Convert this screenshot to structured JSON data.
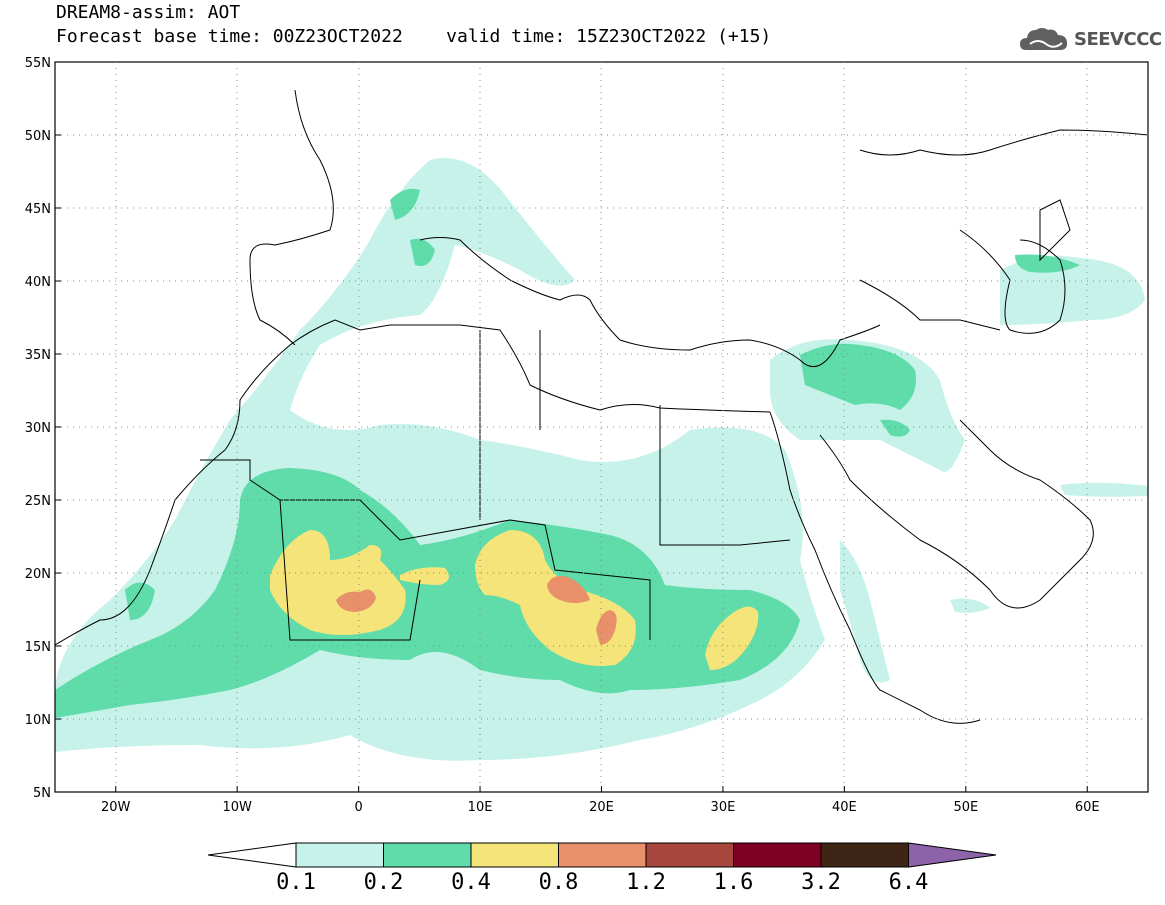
{
  "header": {
    "title": "DREAM8-assim: AOT",
    "base_time_label": "Forecast base time: 00Z23OCT2022",
    "valid_time_label": "valid time: 15Z23OCT2022 (+15)",
    "logo_text": "SEEVCCC"
  },
  "map": {
    "lon_range": [
      -25,
      65
    ],
    "lat_range": [
      5,
      55
    ],
    "lat_ticks": [
      "5N",
      "10N",
      "15N",
      "20N",
      "25N",
      "30N",
      "35N",
      "40N",
      "45N",
      "50N",
      "55N"
    ],
    "lon_ticks": [
      "20W",
      "10W",
      "0",
      "10E",
      "20E",
      "30E",
      "40E",
      "50E",
      "60E"
    ],
    "grid": "dotted"
  },
  "colorbar": {
    "levels": [
      "0.1",
      "0.2",
      "0.4",
      "0.8",
      "1.2",
      "1.6",
      "3.2",
      "6.4"
    ],
    "colors": [
      "#ffffff",
      "#c6f2ea",
      "#5fdcaa",
      "#f5e479",
      "#e8906a",
      "#a6463c",
      "#7e0025",
      "#3e2516",
      "#8c63a8"
    ]
  }
}
